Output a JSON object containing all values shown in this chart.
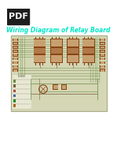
{
  "title": "Wiring Diagram of Relay Board",
  "title_color": "#00e8c8",
  "title_fontsize": 5.5,
  "pdf_label": "PDF",
  "pdf_bg": "#1e1e1e",
  "pdf_text_color": "#ffffff",
  "pdf_fontsize": 8,
  "diagram_bg": "#d4d6b4",
  "diagram_border": "#a0a080",
  "component_color": "#8b4513",
  "component_light": "#c8a070",
  "wire_color": "#6b8c4a",
  "wire_color2": "#7a6040",
  "page_bg": "#ffffff",
  "legend_bg": "#e8e8d4",
  "legend_border": "#888870"
}
